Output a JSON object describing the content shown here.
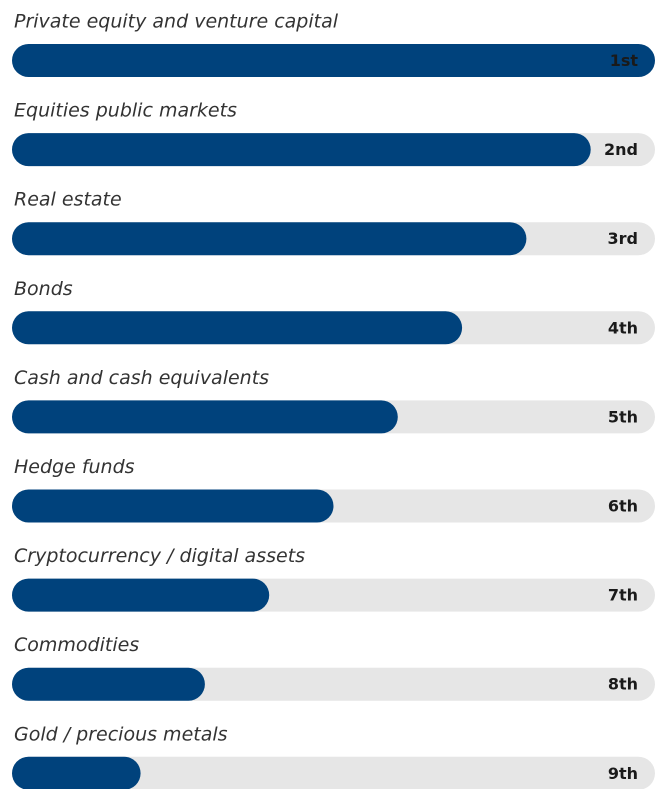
{
  "chart_data": {
    "type": "rank-bar",
    "categories": [
      "Private equity and venture capital",
      "Equities public markets",
      "Real estate",
      "Bonds",
      "Cash and cash equivalents",
      "Hedge funds",
      "Cryptocurrency / digital assets",
      "Commodities",
      "Gold / precious metals"
    ],
    "values": [
      1,
      2,
      3,
      4,
      5,
      6,
      7,
      8,
      9
    ],
    "value_labels": [
      "1st",
      "2nd",
      "3rd",
      "4th",
      "5th",
      "6th",
      "7th",
      "8th",
      "9th"
    ],
    "xlim": [
      11,
      1
    ],
    "color": "#00427c",
    "track_color": "#e6e6e6"
  }
}
